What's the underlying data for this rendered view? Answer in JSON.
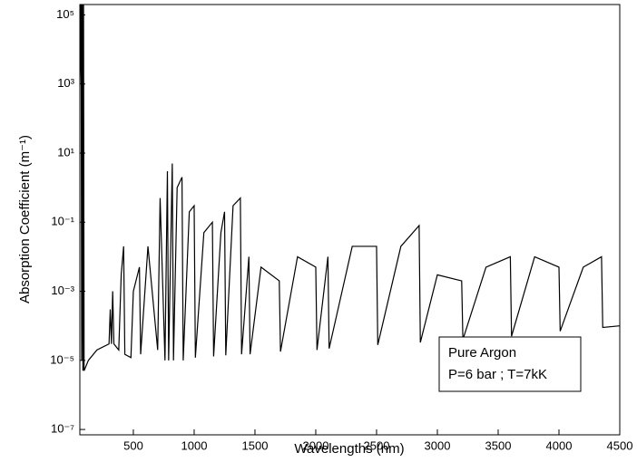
{
  "chart_data": {
    "type": "line",
    "x_label": "Wavelengths (nm)",
    "y_label": "Absorption Coefficient (m⁻¹)",
    "annotations": [
      "Pure Argon",
      "P=6 bar ; T=7kK"
    ],
    "log_y": true,
    "xlim": [
      60,
      4500
    ],
    "xticks": [
      500,
      1000,
      1500,
      2000,
      2500,
      3000,
      3500,
      4000,
      4500
    ],
    "ylim": [
      7e-08,
      200000.0
    ],
    "yticks": [
      {
        "value": 1e-07,
        "label": "10⁻⁷"
      },
      {
        "value": 1e-05,
        "label": "10⁻⁵"
      },
      {
        "value": 0.001,
        "label": "10⁻³"
      },
      {
        "value": 0.1,
        "label": "10⁻¹"
      },
      {
        "value": 10,
        "label": "10¹"
      },
      {
        "value": 1000,
        "label": "10³"
      },
      {
        "value": 100000,
        "label": "10⁵"
      }
    ],
    "series": [
      {
        "color": "#000000",
        "x": [
          60,
          65,
          70,
          75,
          80,
          85,
          90,
          95,
          130,
          200,
          300,
          310,
          320,
          330,
          340,
          380,
          400,
          420,
          430,
          480,
          500,
          550,
          560,
          620,
          700,
          720,
          760,
          780,
          790,
          820,
          830,
          860,
          900,
          910,
          960,
          1000,
          1010,
          1080,
          1150,
          1160,
          1220,
          1250,
          1260,
          1320,
          1380,
          1390,
          1450,
          1460,
          1550,
          1700,
          1710,
          1850,
          2000,
          2010,
          2100,
          2110,
          2300,
          2500,
          2510,
          2700,
          2850,
          2860,
          3000,
          3200,
          3210,
          3400,
          3600,
          3610,
          3800,
          4000,
          4010,
          4200,
          4350,
          4360,
          4500
        ],
        "values": [
          1000,
          10000,
          1000000,
          1e-05,
          1000000,
          5e-06,
          1000000,
          5e-06,
          1e-05,
          2e-05,
          3e-05,
          0.0003,
          3e-05,
          0.001,
          3e-05,
          2e-05,
          0.003,
          0.02,
          1.5e-05,
          1.2e-05,
          0.001,
          0.005,
          1.5e-05,
          0.02,
          2e-05,
          0.5,
          1e-05,
          3,
          1e-05,
          5,
          1e-05,
          1,
          2,
          1e-05,
          0.2,
          0.3,
          1.2e-05,
          0.05,
          0.1,
          1.3e-05,
          0.05,
          0.2,
          1.4e-05,
          0.3,
          0.5,
          1.5e-05,
          0.01,
          1.5e-05,
          0.005,
          0.002,
          1.8e-05,
          0.01,
          0.005,
          2e-05,
          0.01,
          2.2e-05,
          0.02,
          0.02,
          2.8e-05,
          0.02,
          0.08,
          3.3e-05,
          0.003,
          0.002,
          4e-05,
          0.005,
          0.01,
          5e-05,
          0.01,
          0.005,
          7e-05,
          0.005,
          0.01,
          9e-05,
          0.0001
        ]
      }
    ]
  }
}
